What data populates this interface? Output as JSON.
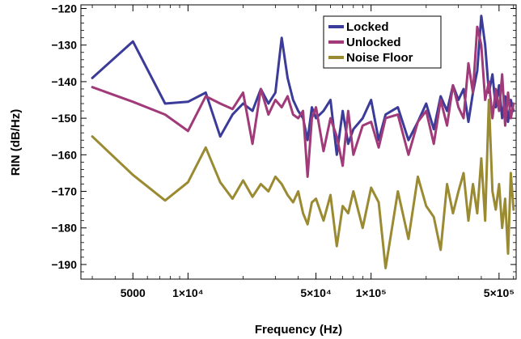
{
  "chart_data": {
    "type": "line",
    "xlabel": "Frequency (Hz)",
    "ylabel": "RIN (dB/Hz)",
    "xscale": "log",
    "xlim": [
      2600,
      620000
    ],
    "ylim": [
      -194,
      -119
    ],
    "grid": false,
    "legend_position": "top-right",
    "x_ticks": [
      {
        "value": 5000,
        "label": "5000"
      },
      {
        "value": 10000,
        "label": "1×10⁴"
      },
      {
        "value": 50000,
        "label": "5×10⁴"
      },
      {
        "value": 100000,
        "label": "1×10⁵"
      },
      {
        "value": 500000,
        "label": "5×10⁵"
      }
    ],
    "y_ticks": [
      {
        "value": -120,
        "label": "−120"
      },
      {
        "value": -130,
        "label": "−130"
      },
      {
        "value": -140,
        "label": "−140"
      },
      {
        "value": -150,
        "label": "−150"
      },
      {
        "value": -160,
        "label": "−160"
      },
      {
        "value": -170,
        "label": "−170"
      },
      {
        "value": -180,
        "label": "−180"
      },
      {
        "value": -190,
        "label": "−190"
      }
    ],
    "series": [
      {
        "name": "Locked",
        "color": "#3b3b99",
        "x": [
          3000,
          5000,
          7500,
          10000,
          12500,
          15000,
          17500,
          20000,
          22500,
          25000,
          27500,
          30000,
          32500,
          35000,
          37500,
          40000,
          42500,
          45000,
          47500,
          50000,
          55000,
          60000,
          65000,
          70000,
          75000,
          80000,
          90000,
          100000,
          110000,
          120000,
          140000,
          160000,
          180000,
          200000,
          220000,
          240000,
          260000,
          280000,
          300000,
          320000,
          340000,
          360000,
          380000,
          400000,
          420000,
          440000,
          460000,
          480000,
          500000,
          520000,
          540000,
          560000,
          580000,
          600000
        ],
        "y": [
          -139,
          -129,
          -146,
          -145.5,
          -143,
          -155,
          -149,
          -146,
          -148,
          -142,
          -146,
          -143,
          -128,
          -139,
          -145,
          -148,
          -150,
          -156,
          -147,
          -150,
          -148,
          -145,
          -160,
          -148,
          -157,
          -153,
          -150,
          -145,
          -156,
          -149,
          -147,
          -156,
          -151,
          -146,
          -153,
          -144,
          -148,
          -141,
          -145,
          -142,
          -151,
          -143,
          -137,
          -122,
          -130,
          -143,
          -138,
          -147,
          -141,
          -150,
          -144,
          -151,
          -145,
          -148
        ]
      },
      {
        "name": "Unlocked",
        "color": "#a03a78",
        "x": [
          3000,
          5000,
          7500,
          10000,
          12500,
          15000,
          17500,
          20000,
          22500,
          25000,
          27500,
          30000,
          32500,
          35000,
          37500,
          40000,
          42500,
          45000,
          47500,
          50000,
          55000,
          60000,
          65000,
          70000,
          75000,
          80000,
          90000,
          100000,
          110000,
          120000,
          140000,
          160000,
          180000,
          200000,
          220000,
          240000,
          260000,
          280000,
          300000,
          320000,
          340000,
          360000,
          380000,
          400000,
          420000,
          440000,
          460000,
          480000,
          500000,
          520000,
          540000,
          560000,
          580000,
          600000
        ],
        "y": [
          -141.5,
          -145.5,
          -149,
          -153.5,
          -144,
          -146,
          -147.5,
          -143,
          -157,
          -142,
          -149,
          -145,
          -147,
          -144,
          -149,
          -150,
          -148,
          -166,
          -150,
          -147,
          -159,
          -150,
          -155,
          -163,
          -148,
          -160,
          -152,
          -151,
          -158,
          -150,
          -149,
          -160,
          -151,
          -148,
          -157,
          -145,
          -152,
          -141,
          -147,
          -150,
          -135,
          -143,
          -125,
          -130,
          -145,
          -140,
          -150,
          -142,
          -148,
          -138,
          -152,
          -143,
          -150,
          -146
        ]
      },
      {
        "name": "Noise Floor",
        "color": "#9a8a32",
        "x": [
          3000,
          5000,
          7500,
          10000,
          12500,
          15000,
          17500,
          20000,
          22500,
          25000,
          27500,
          30000,
          32500,
          35000,
          37500,
          40000,
          42500,
          45000,
          47500,
          50000,
          55000,
          60000,
          65000,
          70000,
          75000,
          80000,
          90000,
          100000,
          110000,
          120000,
          140000,
          160000,
          180000,
          200000,
          220000,
          240000,
          260000,
          280000,
          300000,
          320000,
          340000,
          360000,
          380000,
          400000,
          420000,
          440000,
          460000,
          480000,
          500000,
          520000,
          540000,
          560000,
          580000,
          600000
        ],
        "y": [
          -155,
          -165.5,
          -172.5,
          -167.5,
          -158,
          -167.5,
          -172,
          -167,
          -171.5,
          -168,
          -170,
          -166,
          -168,
          -171,
          -173,
          -170,
          -176,
          -179,
          -173,
          -172,
          -178,
          -171,
          -185,
          -174,
          -176,
          -170,
          -180,
          -169,
          -173,
          -191,
          -170,
          -183,
          -166,
          -174,
          -177,
          -186,
          -168,
          -176,
          -170,
          -165,
          -178,
          -168,
          -176,
          -161,
          -178,
          -145,
          -170,
          -175,
          -168,
          -180,
          -172,
          -187,
          -165,
          -175
        ]
      }
    ]
  }
}
